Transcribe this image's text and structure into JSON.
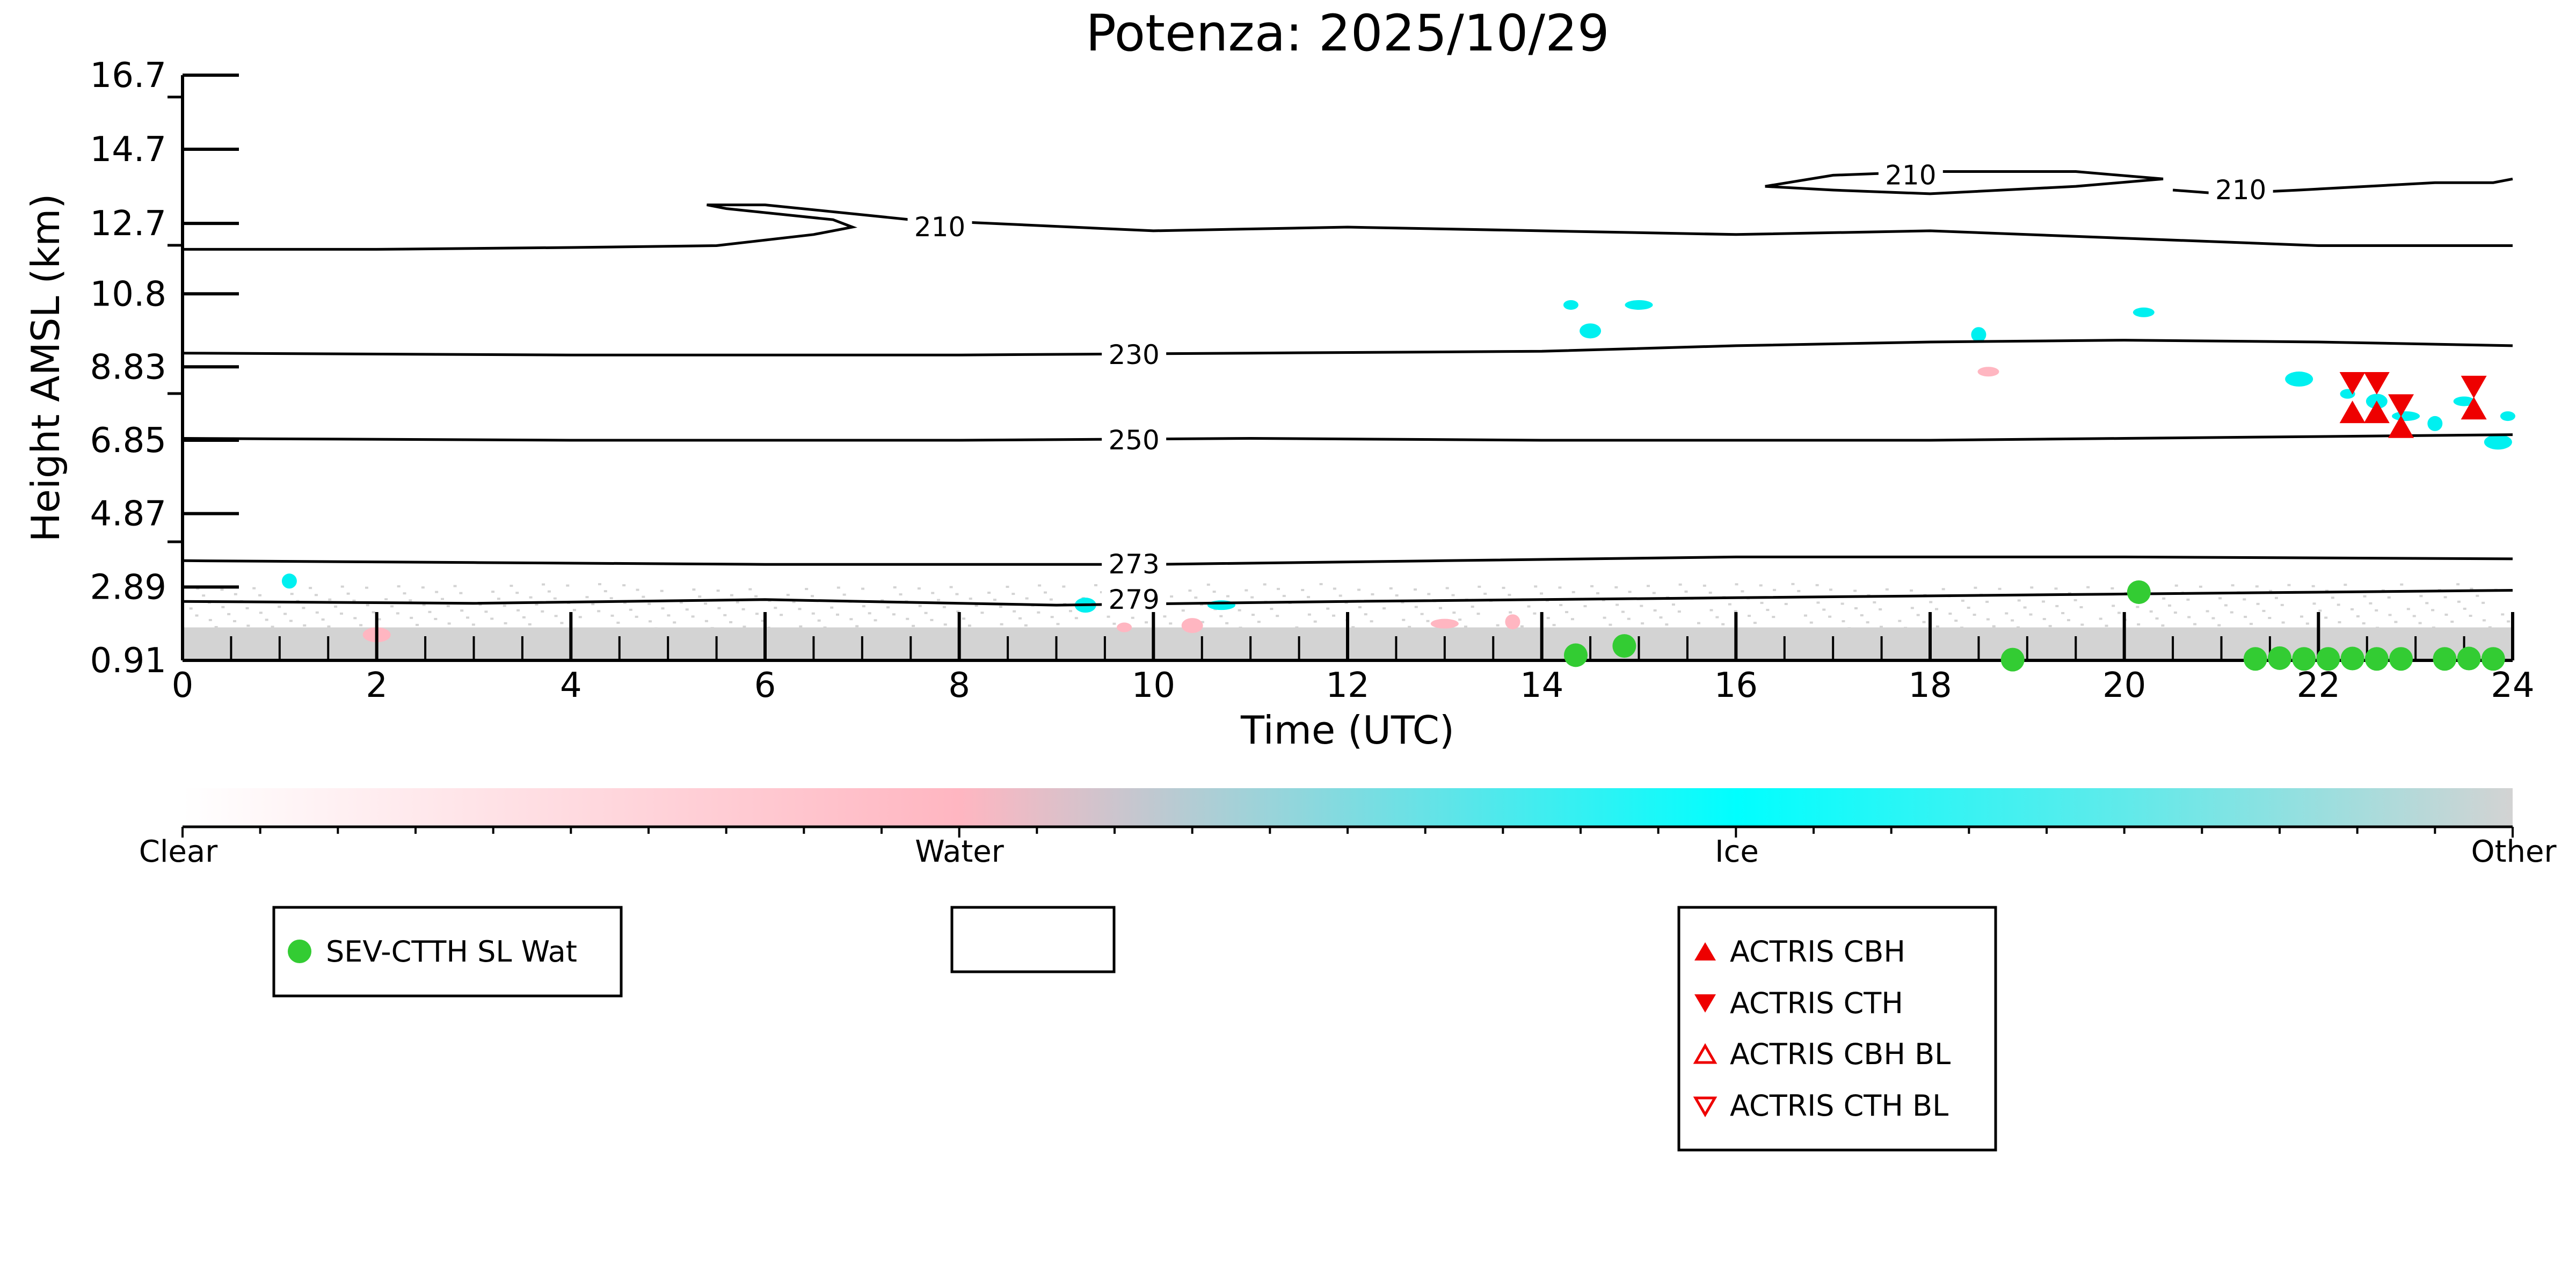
{
  "chart_data": {
    "type": "scatter",
    "title": "Potenza: 2025/10/29",
    "xlabel": "Time (UTC)",
    "ylabel": "Height AMSL (km)",
    "xlim": [
      0,
      24
    ],
    "ylim": [
      0.91,
      16.7
    ],
    "x_ticks": [
      "0",
      "2",
      "4",
      "6",
      "8",
      "10",
      "12",
      "14",
      "16",
      "18",
      "20",
      "22",
      "24"
    ],
    "y_ticks": [
      "0.91",
      "2.89",
      "4.87",
      "6.85",
      "8.83",
      "10.8",
      "12.7",
      "14.7",
      "16.7"
    ],
    "y_tick_values": [
      0.91,
      2.89,
      4.87,
      6.85,
      8.83,
      10.8,
      12.7,
      14.7,
      16.7
    ],
    "colorbar": {
      "labels": [
        "Clear",
        "Water",
        "Ice",
        "Other"
      ],
      "colors": [
        "#ffffff",
        "#ffb6c1",
        "#00ffff",
        "#d3d3d3"
      ]
    },
    "contours": [
      {
        "label": "210",
        "points": [
          [
            0,
            12.0
          ],
          [
            2,
            12.0
          ],
          [
            4,
            12.05
          ],
          [
            5.5,
            12.1
          ],
          [
            6.5,
            12.4
          ],
          [
            6.9,
            12.6
          ],
          [
            6.7,
            12.8
          ],
          [
            5.6,
            13.1
          ],
          [
            5.4,
            13.2
          ],
          [
            6.0,
            13.2
          ],
          [
            7.5,
            12.8
          ],
          [
            10,
            12.5
          ],
          [
            12,
            12.6
          ],
          [
            16,
            12.4
          ],
          [
            18,
            12.5
          ],
          [
            20,
            12.3
          ],
          [
            22,
            12.1
          ],
          [
            24,
            12.1
          ]
        ]
      },
      {
        "label": "210",
        "points": [
          [
            16.3,
            13.7
          ],
          [
            17.0,
            14.0
          ],
          [
            18.0,
            14.1
          ],
          [
            19.5,
            14.1
          ],
          [
            20.4,
            13.9
          ],
          [
            19.5,
            13.7
          ],
          [
            18.0,
            13.5
          ],
          [
            17.0,
            13.6
          ],
          [
            16.3,
            13.7
          ]
        ]
      },
      {
        "label": "210",
        "points": [
          [
            20.5,
            13.6
          ],
          [
            21.0,
            13.5
          ],
          [
            21.8,
            13.6
          ],
          [
            22.5,
            13.7
          ],
          [
            23.2,
            13.8
          ],
          [
            23.8,
            13.8
          ],
          [
            24,
            13.9
          ]
        ]
      },
      {
        "label": "230",
        "points": [
          [
            0,
            9.2
          ],
          [
            4,
            9.15
          ],
          [
            8,
            9.15
          ],
          [
            11,
            9.2
          ],
          [
            14,
            9.25
          ],
          [
            16,
            9.4
          ],
          [
            18,
            9.5
          ],
          [
            20,
            9.55
          ],
          [
            22,
            9.5
          ],
          [
            24,
            9.4
          ]
        ]
      },
      {
        "label": "250",
        "points": [
          [
            0,
            6.9
          ],
          [
            4,
            6.85
          ],
          [
            8,
            6.85
          ],
          [
            11,
            6.9
          ],
          [
            14,
            6.85
          ],
          [
            18,
            6.85
          ],
          [
            20,
            6.9
          ],
          [
            22,
            6.95
          ],
          [
            24,
            7.0
          ]
        ]
      },
      {
        "label": "273",
        "points": [
          [
            0,
            3.6
          ],
          [
            3,
            3.55
          ],
          [
            6,
            3.5
          ],
          [
            10,
            3.5
          ],
          [
            13,
            3.6
          ],
          [
            16,
            3.7
          ],
          [
            20,
            3.7
          ],
          [
            24,
            3.65
          ]
        ]
      },
      {
        "label": "279",
        "points": [
          [
            0,
            2.5
          ],
          [
            3,
            2.45
          ],
          [
            6,
            2.55
          ],
          [
            9,
            2.4
          ],
          [
            12,
            2.5
          ],
          [
            16,
            2.6
          ],
          [
            20,
            2.7
          ],
          [
            24,
            2.8
          ]
        ]
      }
    ],
    "series": [
      {
        "name": "SEV-CTTH SL Wat",
        "color": "#33cc33",
        "x": [
          14.35,
          14.85,
          18.85,
          20.15,
          21.35,
          21.6,
          21.85,
          22.1,
          22.35,
          22.6,
          22.85,
          23.3,
          23.55,
          23.8
        ],
        "y": [
          1.05,
          1.3,
          0.93,
          2.75,
          0.95,
          0.97,
          0.95,
          0.95,
          0.96,
          0.95,
          0.95,
          0.95,
          0.96,
          0.95
        ]
      },
      {
        "name": "ACTRIS CBH",
        "color": "#ee0000",
        "x": [
          22.35,
          22.6,
          22.85,
          23.6
        ],
        "y": [
          7.6,
          7.6,
          7.2,
          7.7
        ]
      },
      {
        "name": "ACTRIS CTH",
        "color": "#ee0000",
        "x": [
          22.35,
          22.6,
          22.85,
          23.6
        ],
        "y": [
          8.4,
          8.4,
          7.8,
          8.3
        ]
      },
      {
        "name": "ACTRIS CBH BL",
        "color": "#ee0000",
        "x": [],
        "y": []
      },
      {
        "name": "ACTRIS CTH BL",
        "color": "#ee0000",
        "x": [],
        "y": []
      }
    ],
    "cloud_patches": [
      {
        "class": "Ice",
        "x": 14.3,
        "y": 10.5
      },
      {
        "class": "Ice",
        "x": 14.5,
        "y": 9.8
      },
      {
        "class": "Ice",
        "x": 15.0,
        "y": 10.5
      },
      {
        "class": "Ice",
        "x": 18.5,
        "y": 9.7
      },
      {
        "class": "Ice",
        "x": 20.2,
        "y": 10.3
      },
      {
        "class": "Ice",
        "x": 21.8,
        "y": 8.5
      },
      {
        "class": "Ice",
        "x": 22.3,
        "y": 8.1
      },
      {
        "class": "Ice",
        "x": 22.6,
        "y": 7.9
      },
      {
        "class": "Ice",
        "x": 22.9,
        "y": 7.5
      },
      {
        "class": "Ice",
        "x": 23.2,
        "y": 7.3
      },
      {
        "class": "Ice",
        "x": 23.5,
        "y": 7.9
      },
      {
        "class": "Ice",
        "x": 23.85,
        "y": 6.8
      },
      {
        "class": "Ice",
        "x": 23.95,
        "y": 7.5
      },
      {
        "class": "Ice",
        "x": 9.3,
        "y": 2.4
      },
      {
        "class": "Ice",
        "x": 10.7,
        "y": 2.4
      },
      {
        "class": "Ice",
        "x": 1.1,
        "y": 3.05
      },
      {
        "class": "Water",
        "x": 18.6,
        "y": 8.7
      },
      {
        "class": "Water",
        "x": 2.0,
        "y": 1.6
      },
      {
        "class": "Water",
        "x": 9.7,
        "y": 1.8
      },
      {
        "class": "Water",
        "x": 10.4,
        "y": 1.85
      },
      {
        "class": "Water",
        "x": 13.0,
        "y": 1.9
      },
      {
        "class": "Water",
        "x": 13.7,
        "y": 1.95
      }
    ],
    "legend_left": {
      "entries": [
        "SEV-CTTH SL Wat"
      ]
    },
    "legend_right": {
      "entries": [
        "ACTRIS CBH",
        "ACTRIS CTH",
        "ACTRIS CBH BL",
        "ACTRIS CTH BL"
      ]
    }
  }
}
